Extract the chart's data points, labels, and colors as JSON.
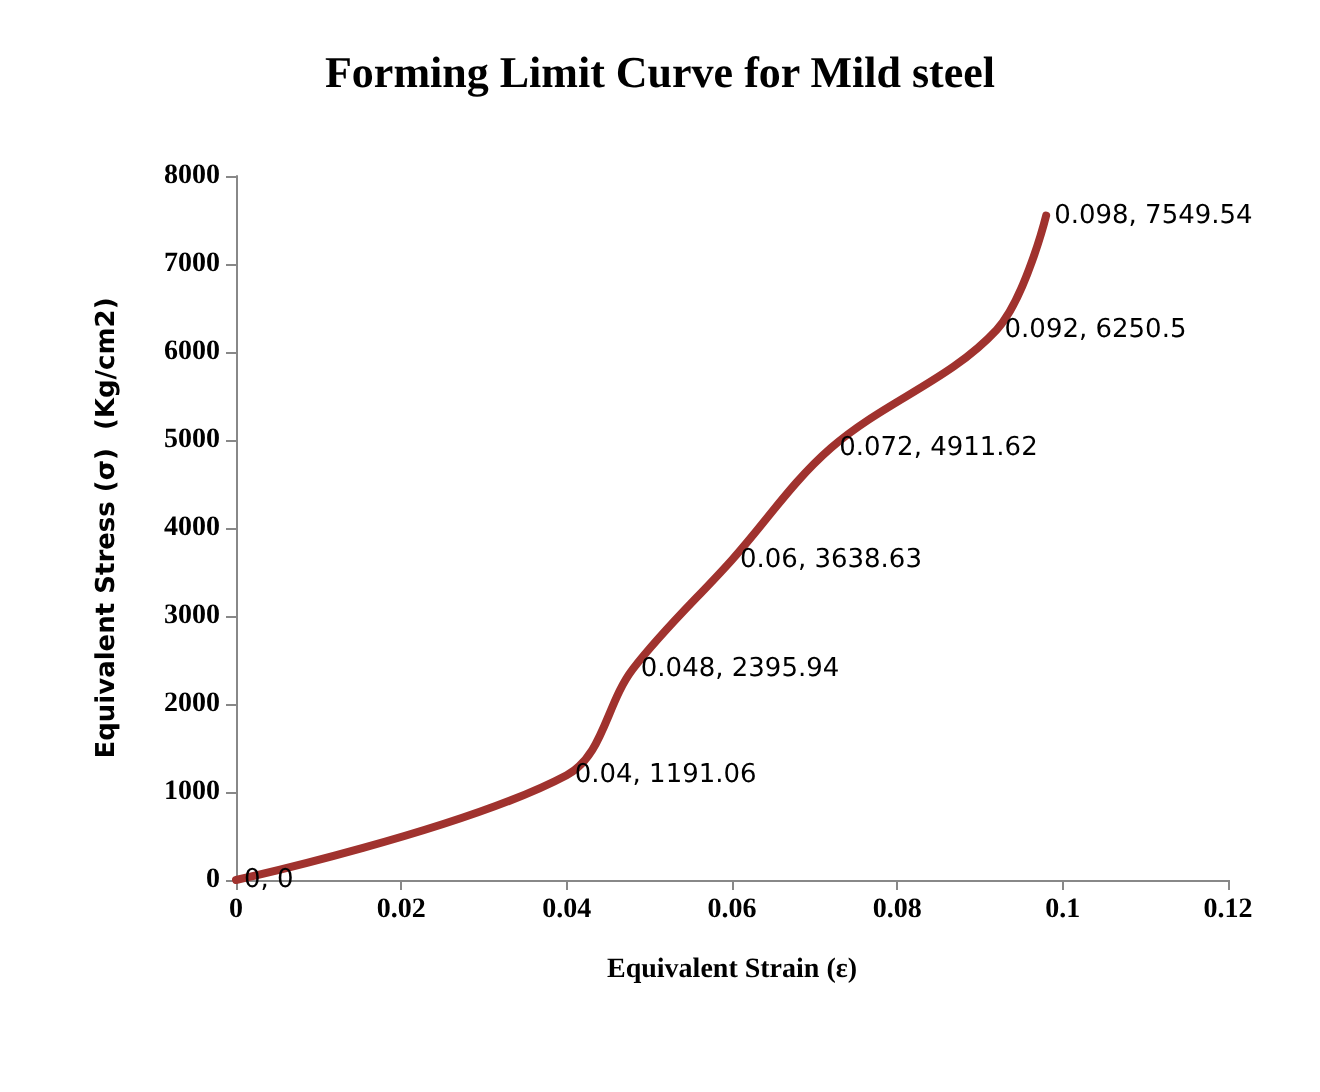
{
  "chart_data": {
    "type": "line",
    "title": "Forming Limit Curve for Mild steel",
    "xlabel": "Equivalent Strain (ε)",
    "ylabel": "Equivalent Stress (σ)  (Kg/cm2)",
    "x": [
      0,
      0.04,
      0.048,
      0.06,
      0.072,
      0.092,
      0.098
    ],
    "series": [
      {
        "color": "#a0322e",
        "values": [
          0,
          1191.06,
          2395.94,
          3638.63,
          4911.62,
          6250.5,
          7549.54
        ],
        "value_labels": [
          "0, 0",
          "0.04, 1191.06",
          "0.048, 2395.94",
          "0.06, 3638.63",
          "0.072, 4911.62",
          "0.092, 6250.5",
          "0.098, 7549.54"
        ]
      }
    ],
    "xlim": [
      0,
      0.12
    ],
    "xticks": [
      0,
      0.02,
      0.04,
      0.06,
      0.08,
      0.1,
      0.12
    ],
    "ylim": [
      0,
      8000
    ],
    "yticks": [
      0,
      1000,
      2000,
      3000,
      4000,
      5000,
      6000,
      7000,
      8000
    ],
    "grid": false,
    "marker": "none",
    "line_style": "solid"
  }
}
